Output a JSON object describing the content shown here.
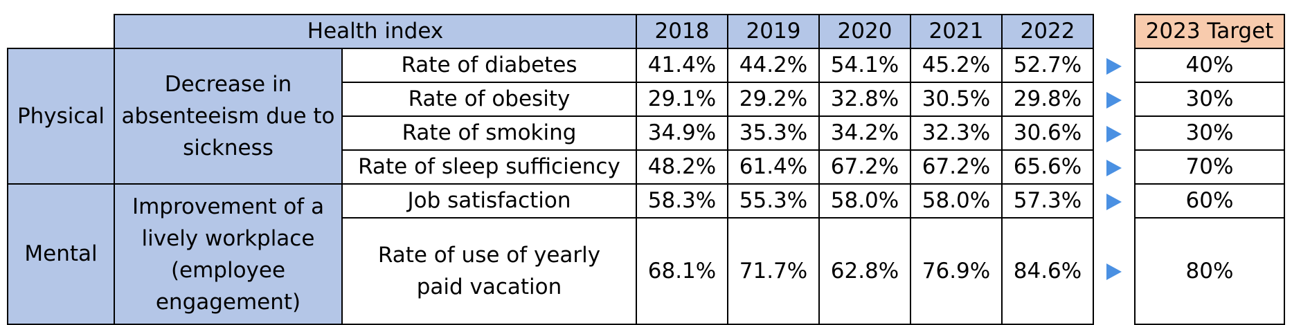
{
  "header": {
    "health_index": "Health index",
    "years": [
      "2018",
      "2019",
      "2020",
      "2021",
      "2022"
    ],
    "target": "2023 Target"
  },
  "groups": [
    {
      "name": "Physical",
      "goal": "Decrease in absenteeism due to sickness"
    },
    {
      "name": "Mental",
      "goal": "Improvement of a lively workplace (employee engagement)"
    }
  ],
  "rows": [
    {
      "label": "Rate of diabetes",
      "values": [
        "41.4%",
        "44.2%",
        "54.1%",
        "45.2%",
        "52.7%"
      ],
      "target": "40%"
    },
    {
      "label": "Rate of obesity",
      "values": [
        "29.1%",
        "29.2%",
        "32.8%",
        "30.5%",
        "29.8%"
      ],
      "target": "30%"
    },
    {
      "label": "Rate of smoking",
      "values": [
        "34.9%",
        "35.3%",
        "34.2%",
        "32.3%",
        "30.6%"
      ],
      "target": "30%"
    },
    {
      "label": "Rate of sleep sufficiency",
      "values": [
        "48.2%",
        "61.4%",
        "67.2%",
        "67.2%",
        "65.6%"
      ],
      "target": "70%"
    },
    {
      "label": "Job satisfaction",
      "values": [
        "58.3%",
        "55.3%",
        "58.0%",
        "58.0%",
        "57.3%"
      ],
      "target": "60%"
    },
    {
      "label": "Rate of use of yearly paid vacation",
      "values": [
        "68.1%",
        "71.7%",
        "62.8%",
        "76.9%",
        "84.6%"
      ],
      "target": "80%"
    }
  ],
  "icons": {
    "arrow": "arrow-right-icon"
  },
  "colors": {
    "header_blue": "#b4c6e7",
    "target_orange": "#f8cbad",
    "arrow_blue": "#4a90e2"
  }
}
